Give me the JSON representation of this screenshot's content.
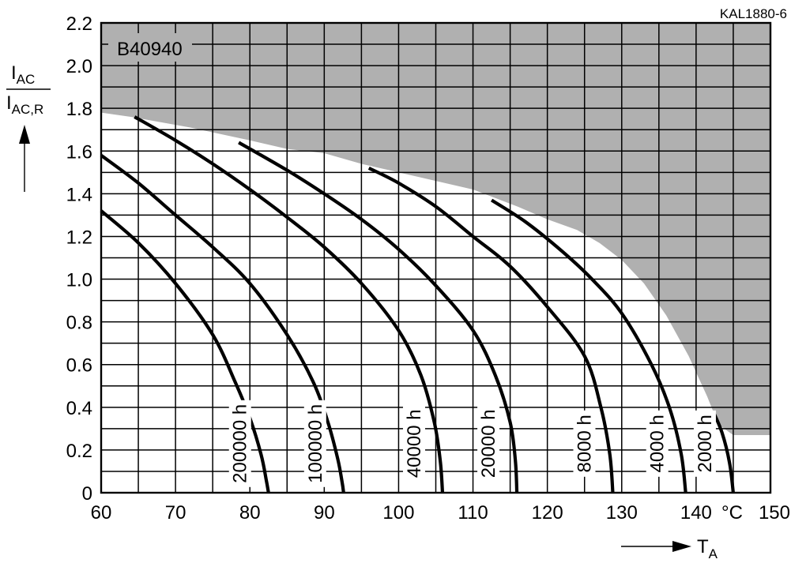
{
  "chart_data": {
    "type": "line",
    "figure_code": "KAL1880-6",
    "product": "B40940",
    "ylabel": {
      "num": "I",
      "num_sub": "AC",
      "den": "I",
      "den_sub": "AC,R"
    },
    "xlabel": {
      "main": "T",
      "sub": "A"
    },
    "x_unit": "°C",
    "xlim": [
      60,
      150
    ],
    "ylim": [
      0,
      2.2
    ],
    "x_ticks": [
      60,
      70,
      80,
      90,
      100,
      110,
      120,
      130,
      140,
      150
    ],
    "y_ticks": [
      "0",
      "0.2",
      "0.4",
      "0.6",
      "0.8",
      "1.0",
      "1.2",
      "1.4",
      "1.6",
      "1.8",
      "2.0",
      "2.2"
    ],
    "grid": true,
    "boundary": [
      [
        60,
        1.78
      ],
      [
        64,
        1.76
      ],
      [
        72,
        1.71
      ],
      [
        80,
        1.65
      ],
      [
        85,
        1.61
      ],
      [
        90,
        1.59
      ],
      [
        95,
        1.54
      ],
      [
        100,
        1.5
      ],
      [
        105,
        1.46
      ],
      [
        110,
        1.42
      ],
      [
        113,
        1.38
      ],
      [
        116,
        1.34
      ],
      [
        120,
        1.28
      ],
      [
        124,
        1.23
      ],
      [
        127,
        1.17
      ],
      [
        130,
        1.09
      ],
      [
        133,
        0.98
      ],
      [
        136,
        0.83
      ],
      [
        139,
        0.64
      ],
      [
        141.5,
        0.45
      ],
      [
        143,
        0.32
      ],
      [
        145,
        0.27
      ],
      [
        150,
        0.27
      ]
    ],
    "series": [
      {
        "name": "200000 h",
        "points": [
          [
            60,
            1.32
          ],
          [
            65,
            1.17
          ],
          [
            70,
            0.98
          ],
          [
            75,
            0.74
          ],
          [
            78,
            0.52
          ],
          [
            80,
            0.35
          ],
          [
            81.5,
            0.18
          ],
          [
            82.2,
            0.06
          ],
          [
            82.5,
            0
          ]
        ]
      },
      {
        "name": "100000 h",
        "points": [
          [
            60,
            1.58
          ],
          [
            65,
            1.45
          ],
          [
            70,
            1.3
          ],
          [
            75,
            1.15
          ],
          [
            80,
            0.98
          ],
          [
            85,
            0.74
          ],
          [
            88.5,
            0.52
          ],
          [
            90.5,
            0.33
          ],
          [
            91.8,
            0.16
          ],
          [
            92.4,
            0.05
          ],
          [
            92.6,
            0
          ]
        ]
      },
      {
        "name": "40000 h",
        "points": [
          [
            64.5,
            1.76
          ],
          [
            70,
            1.65
          ],
          [
            75,
            1.54
          ],
          [
            80,
            1.42
          ],
          [
            85,
            1.29
          ],
          [
            90,
            1.15
          ],
          [
            95,
            0.98
          ],
          [
            100,
            0.76
          ],
          [
            103,
            0.55
          ],
          [
            104.8,
            0.33
          ],
          [
            105.6,
            0.15
          ],
          [
            105.9,
            0
          ]
        ]
      },
      {
        "name": "20000 h",
        "points": [
          [
            78.5,
            1.64
          ],
          [
            85,
            1.51
          ],
          [
            90,
            1.4
          ],
          [
            95,
            1.28
          ],
          [
            100,
            1.14
          ],
          [
            105,
            0.97
          ],
          [
            110,
            0.76
          ],
          [
            113,
            0.55
          ],
          [
            115,
            0.33
          ],
          [
            115.7,
            0.15
          ],
          [
            115.9,
            0
          ]
        ]
      },
      {
        "name": "8000 h",
        "points": [
          [
            96,
            1.52
          ],
          [
            100,
            1.45
          ],
          [
            105,
            1.34
          ],
          [
            110,
            1.2
          ],
          [
            115,
            1.06
          ],
          [
            120,
            0.87
          ],
          [
            125,
            0.64
          ],
          [
            127.2,
            0.4
          ],
          [
            128.4,
            0.18
          ],
          [
            128.8,
            0
          ]
        ]
      },
      {
        "name": "4000 h",
        "points": [
          [
            112.5,
            1.37
          ],
          [
            117,
            1.27
          ],
          [
            122,
            1.13
          ],
          [
            126,
            1.0
          ],
          [
            130,
            0.84
          ],
          [
            134,
            0.6
          ],
          [
            136.5,
            0.39
          ],
          [
            138,
            0.18
          ],
          [
            138.6,
            0
          ]
        ]
      },
      {
        "name": "2000 h",
        "points": [
          [
            142.3,
            0.38
          ],
          [
            143.5,
            0.28
          ],
          [
            144.5,
            0.14
          ],
          [
            145,
            0
          ]
        ]
      }
    ]
  }
}
